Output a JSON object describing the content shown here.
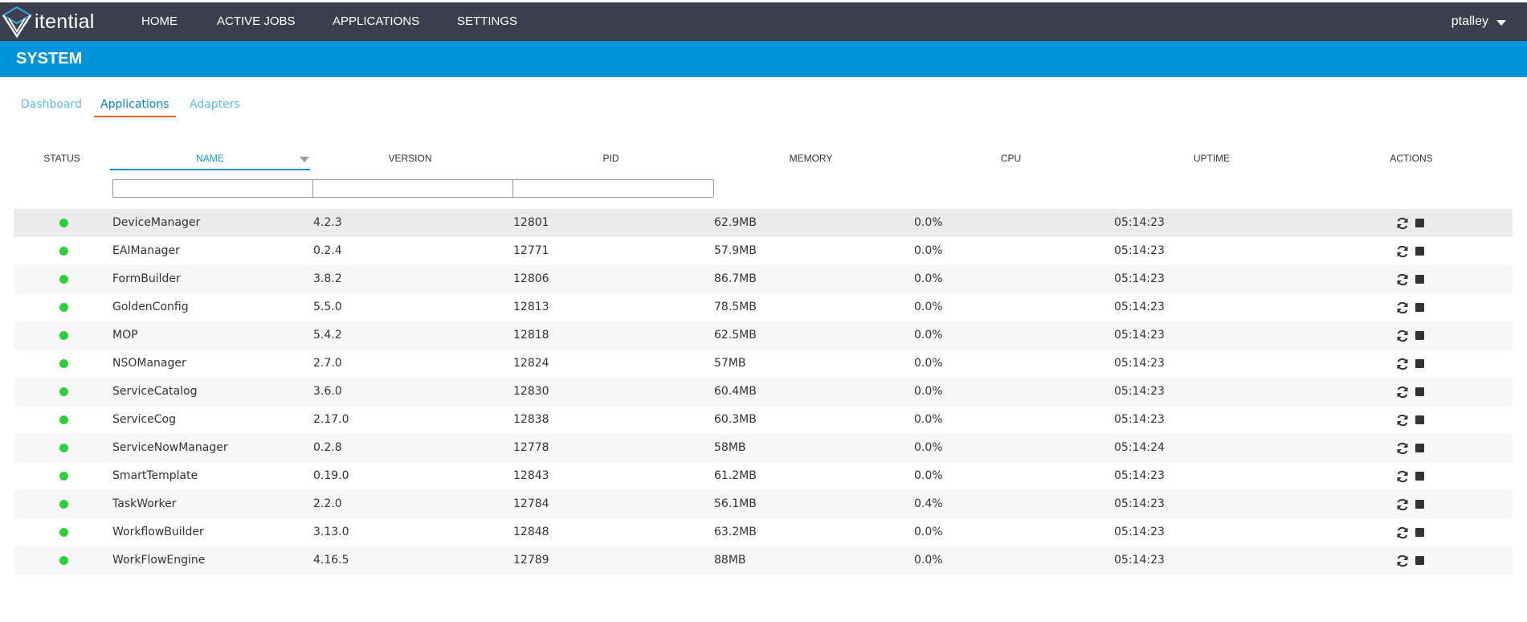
{
  "brand": {
    "name": "itential"
  },
  "nav": [
    {
      "label": "HOME"
    },
    {
      "label": "ACTIVE JOBS"
    },
    {
      "label": "APPLICATIONS"
    },
    {
      "label": "SETTINGS"
    }
  ],
  "user": {
    "name": "ptalley"
  },
  "banner": {
    "title": "SYSTEM"
  },
  "tabs": [
    {
      "label": "Dashboard",
      "active": false
    },
    {
      "label": "Applications",
      "active": true
    },
    {
      "label": "Adapters",
      "active": false
    }
  ],
  "table": {
    "columns": [
      "STATUS",
      "NAME",
      "VERSION",
      "PID",
      "MEMORY",
      "CPU",
      "UPTIME",
      "ACTIONS"
    ],
    "sorted_by": "NAME",
    "filters": {
      "name": "",
      "version": "",
      "pid": ""
    },
    "status_color": "#2fce3f",
    "action_icons": [
      "refresh-icon",
      "stop-icon"
    ],
    "rows": [
      {
        "name": "DeviceManager",
        "version": "4.2.3",
        "pid": "12801",
        "memory": "62.9MB",
        "cpu": "0.0%",
        "uptime": "05:14:23"
      },
      {
        "name": "EAIManager",
        "version": "0.2.4",
        "pid": "12771",
        "memory": "57.9MB",
        "cpu": "0.0%",
        "uptime": "05:14:23"
      },
      {
        "name": "FormBuilder",
        "version": "3.8.2",
        "pid": "12806",
        "memory": "86.7MB",
        "cpu": "0.0%",
        "uptime": "05:14:23"
      },
      {
        "name": "GoldenConfig",
        "version": "5.5.0",
        "pid": "12813",
        "memory": "78.5MB",
        "cpu": "0.0%",
        "uptime": "05:14:23"
      },
      {
        "name": "MOP",
        "version": "5.4.2",
        "pid": "12818",
        "memory": "62.5MB",
        "cpu": "0.0%",
        "uptime": "05:14:23"
      },
      {
        "name": "NSOManager",
        "version": "2.7.0",
        "pid": "12824",
        "memory": "57MB",
        "cpu": "0.0%",
        "uptime": "05:14:23"
      },
      {
        "name": "ServiceCatalog",
        "version": "3.6.0",
        "pid": "12830",
        "memory": "60.4MB",
        "cpu": "0.0%",
        "uptime": "05:14:23"
      },
      {
        "name": "ServiceCog",
        "version": "2.17.0",
        "pid": "12838",
        "memory": "60.3MB",
        "cpu": "0.0%",
        "uptime": "05:14:23"
      },
      {
        "name": "ServiceNowManager",
        "version": "0.2.8",
        "pid": "12778",
        "memory": "58MB",
        "cpu": "0.0%",
        "uptime": "05:14:24"
      },
      {
        "name": "SmartTemplate",
        "version": "0.19.0",
        "pid": "12843",
        "memory": "61.2MB",
        "cpu": "0.0%",
        "uptime": "05:14:23"
      },
      {
        "name": "TaskWorker",
        "version": "2.2.0",
        "pid": "12784",
        "memory": "56.1MB",
        "cpu": "0.4%",
        "uptime": "05:14:23"
      },
      {
        "name": "WorkflowBuilder",
        "version": "3.13.0",
        "pid": "12848",
        "memory": "63.2MB",
        "cpu": "0.0%",
        "uptime": "05:14:23"
      },
      {
        "name": "WorkFlowEngine",
        "version": "4.16.5",
        "pid": "12789",
        "memory": "88MB",
        "cpu": "0.0%",
        "uptime": "05:14:23"
      }
    ]
  }
}
